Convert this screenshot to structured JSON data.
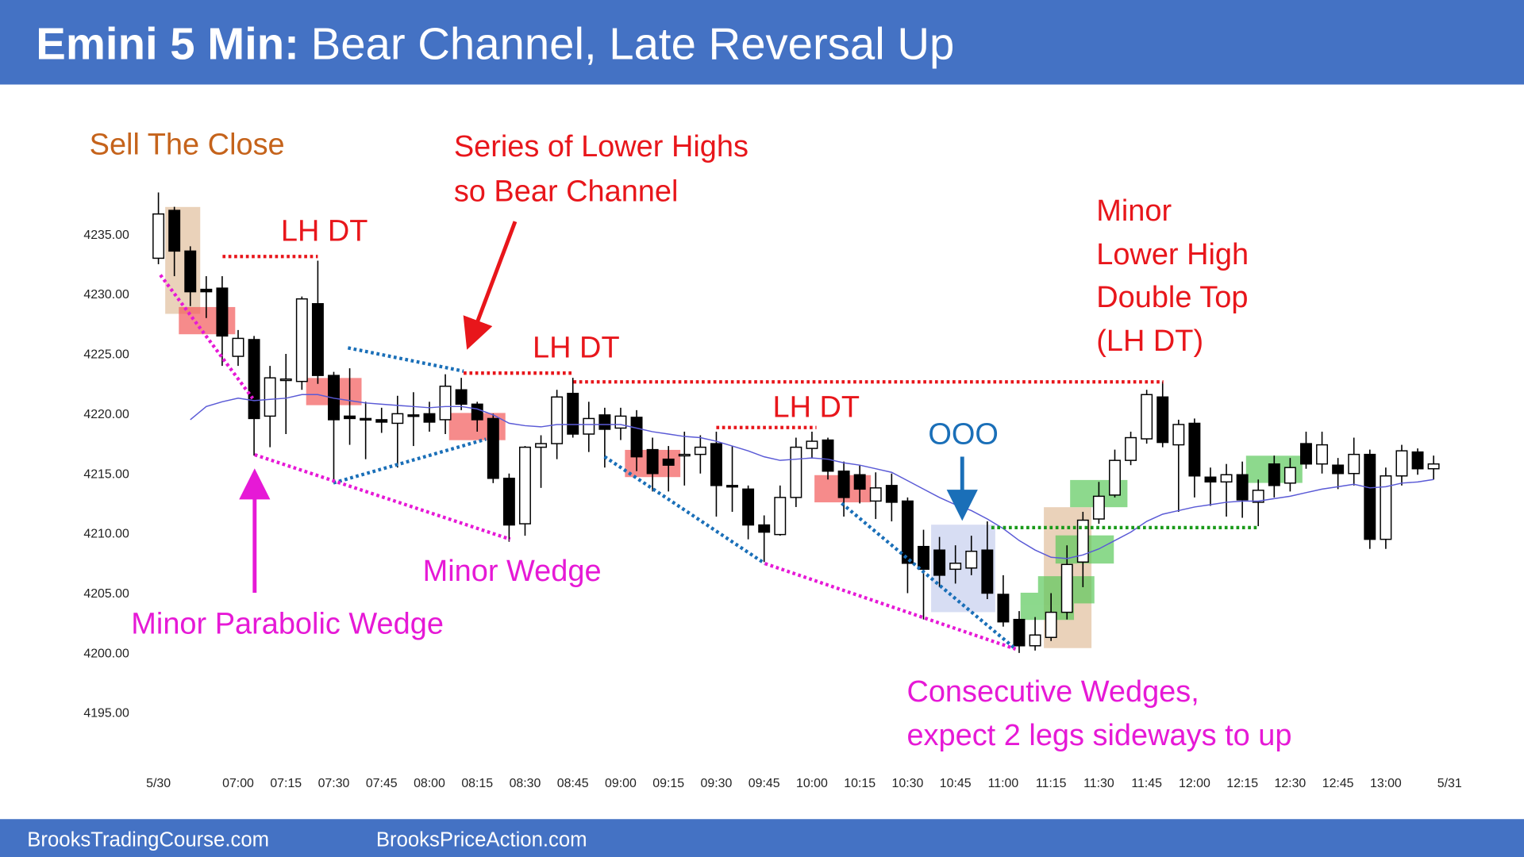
{
  "chart_data": {
    "type": "candlestick",
    "title_bold": "Emini 5 Min:",
    "title": "Bear Channel, Late Reversal Up",
    "footer": [
      "BrooksTradingCourse.com",
      "BrooksPriceAction.com"
    ],
    "up_color": "#ffffff",
    "down_color": "#000000",
    "open": [
      4233,
      4237,
      4233.6,
      4230.4,
      4230.5,
      4224.8,
      4226.2,
      4219.8,
      4222.8,
      4222.7,
      4229.2,
      4223.2,
      4219.8,
      4219.6,
      4219.5,
      4219.2,
      4219.9,
      4220,
      4219.5,
      4222,
      4220.8,
      4219.6,
      4214.6,
      4210.8,
      4217.2,
      4217.5,
      4221.7,
      4218.3,
      4219.9,
      4218.8,
      4219.7,
      4217,
      4216.2,
      4216.5,
      4216.6,
      4217.5,
      4214,
      4213.7,
      4210.7,
      4209.9,
      4213,
      4217.1,
      4217.8,
      4215.2,
      4214.9,
      4212.7,
      4214,
      4212.7,
      4208.9,
      4208.6,
      4207,
      4207.1,
      4208.6,
      4204.9,
      4202.8,
      4200.6,
      4201.3,
      4203.4,
      4207.6,
      4211.2,
      4213.2,
      4216.1,
      4217.9,
      4221.4,
      4217.4,
      4219.2,
      4214.7,
      4214.3,
      4214.9,
      4212.6,
      4215.8,
      4214.2,
      4217.5,
      4215.8,
      4215.7,
      4215,
      4216.6,
      4209.5,
      4214.8,
      4216.8,
      4215.4
    ],
    "high": [
      4238.5,
      4237.3,
      4234,
      4231.5,
      4231.5,
      4227,
      4226.5,
      4224,
      4225,
      4229.8,
      4232.8,
      4223.5,
      4223.8,
      4221,
      4220.5,
      4221.5,
      4221.8,
      4221,
      4223.3,
      4223,
      4221,
      4220,
      4215,
      4217.3,
      4218.2,
      4222,
      4223,
      4221,
      4220.5,
      4220.5,
      4220.3,
      4218,
      4217.3,
      4218.5,
      4218.2,
      4218.5,
      4217.3,
      4214,
      4211.5,
      4214,
      4218,
      4218.5,
      4218,
      4216,
      4215.7,
      4215.1,
      4215,
      4213,
      4210.3,
      4209.7,
      4209,
      4209.8,
      4211,
      4206.5,
      4203.5,
      4203,
      4205,
      4209,
      4211.8,
      4214.3,
      4217,
      4218.5,
      4222,
      4222.7,
      4219.5,
      4219.6,
      4215.5,
      4215.8,
      4216,
      4214.5,
      4216.5,
      4216.3,
      4218.5,
      4218.5,
      4216.3,
      4218,
      4217,
      4215.5,
      4217.4,
      4217.1,
      4216.5
    ],
    "low": [
      4232.5,
      4231.5,
      4229,
      4228,
      4224,
      4224,
      4216.5,
      4217.2,
      4218.3,
      4222,
      4222.5,
      4214.2,
      4217.4,
      4216.2,
      4218.4,
      4215.5,
      4217.3,
      4218.5,
      4218.3,
      4220.3,
      4218.5,
      4214.2,
      4209.3,
      4209.8,
      4213.8,
      4216.2,
      4218,
      4216.8,
      4215.5,
      4217.8,
      4215.2,
      4213.5,
      4213.5,
      4214,
      4215,
      4211.4,
      4211.8,
      4209.5,
      4207.6,
      4209.8,
      4212.2,
      4216.3,
      4214.5,
      4211.4,
      4212.5,
      4211.2,
      4211,
      4205,
      4202.8,
      4205.5,
      4205.8,
      4206.5,
      4204.5,
      4202.2,
      4200,
      4200.2,
      4201,
      4202.8,
      4205.5,
      4210.8,
      4213,
      4215.7,
      4217.5,
      4217.2,
      4211.8,
      4213,
      4212.3,
      4211.4,
      4211.3,
      4210.6,
      4213,
      4213.5,
      4215.4,
      4215,
      4213.7,
      4214,
      4208.7,
      4208.7,
      4214,
      4214.9,
      4214.5
    ],
    "close": [
      4236.7,
      4233.6,
      4230.2,
      4230.2,
      4226.5,
      4226.3,
      4219.6,
      4223,
      4222.9,
      4229.6,
      4223.2,
      4219.5,
      4219.6,
      4219.5,
      4219.3,
      4220,
      4219.8,
      4219.3,
      4222.3,
      4220.8,
      4219.5,
      4214.6,
      4210.7,
      4217.2,
      4217.5,
      4221.4,
      4218.3,
      4219.6,
      4218.7,
      4219.8,
      4216.4,
      4215,
      4215.7,
      4216.6,
      4217.2,
      4214,
      4213.9,
      4210.7,
      4210.1,
      4213,
      4217.2,
      4217.7,
      4215.2,
      4213,
      4213.7,
      4213.8,
      4212.6,
      4207.5,
      4207,
      4206.5,
      4207.5,
      4208.5,
      4205,
      4202.6,
      4200.6,
      4201.5,
      4203.4,
      4207.4,
      4211.1,
      4213.1,
      4216.1,
      4218,
      4221.6,
      4217.6,
      4219.1,
      4214.8,
      4214.3,
      4214.9,
      4212.8,
      4213.6,
      4214,
      4215.5,
      4215.8,
      4217.4,
      4215,
      4216.6,
      4209.5,
      4214.8,
      4216.9,
      4215.4,
      4215.8
    ],
    "moving_average": {
      "color": "#5a5ad6",
      "values": [
        null,
        null,
        4219.5,
        4220.6,
        4221,
        4221.3,
        4221.1,
        4221.2,
        4221.3,
        4221.6,
        4221.6,
        4221.3,
        4221.1,
        4220.9,
        4220.8,
        4220.7,
        4220.6,
        4220.5,
        4220.6,
        4220.6,
        4220.4,
        4219.9,
        4219.2,
        4219,
        4218.9,
        4219.1,
        4219.1,
        4219.1,
        4219.1,
        4219.1,
        4218.8,
        4218.5,
        4218.3,
        4218.1,
        4218,
        4217.7,
        4217.3,
        4216.9,
        4216.4,
        4216.1,
        4216.2,
        4216.3,
        4216.2,
        4215.9,
        4215.7,
        4215.4,
        4215.1,
        4214.4,
        4213.7,
        4213,
        4212.4,
        4211.9,
        4211.2,
        4210.4,
        4209.4,
        4208.6,
        4208,
        4207.9,
        4208.2,
        4208.7,
        4209.4,
        4210.1,
        4211,
        4211.6,
        4211.9,
        4212.2,
        4212.4,
        4212.6,
        4212.7,
        4212.7,
        4212.9,
        4213.1,
        4213.4,
        4213.7,
        4213.9,
        4214.1,
        4213.8,
        4213.9,
        4214.2,
        4214.3,
        4214.5
      ]
    },
    "xlim": [
      -1,
      82
    ],
    "ylim": [
      4190,
      4240
    ],
    "yticks": [
      {
        "value": 4195,
        "label": "4195.00"
      },
      {
        "value": 4200,
        "label": "4200.00"
      },
      {
        "value": 4205,
        "label": "4205.00"
      },
      {
        "value": 4210,
        "label": "4210.00"
      },
      {
        "value": 4215,
        "label": "4215.00"
      },
      {
        "value": 4220,
        "label": "4220.00"
      },
      {
        "value": 4225,
        "label": "4225.00"
      },
      {
        "value": 4230,
        "label": "4230.00"
      },
      {
        "value": 4235,
        "label": "4235.00"
      }
    ],
    "xticks": [
      {
        "value": 0,
        "label": "5/30"
      },
      {
        "value": 5,
        "label": "07:00"
      },
      {
        "value": 8,
        "label": "07:15"
      },
      {
        "value": 11,
        "label": "07:30"
      },
      {
        "value": 14,
        "label": "07:45"
      },
      {
        "value": 17,
        "label": "08:00"
      },
      {
        "value": 20,
        "label": "08:15"
      },
      {
        "value": 23,
        "label": "08:30"
      },
      {
        "value": 26,
        "label": "08:45"
      },
      {
        "value": 29,
        "label": "09:00"
      },
      {
        "value": 32,
        "label": "09:15"
      },
      {
        "value": 35,
        "label": "09:30"
      },
      {
        "value": 38,
        "label": "09:45"
      },
      {
        "value": 41,
        "label": "10:00"
      },
      {
        "value": 44,
        "label": "10:15"
      },
      {
        "value": 47,
        "label": "10:30"
      },
      {
        "value": 50,
        "label": "10:45"
      },
      {
        "value": 53,
        "label": "11:00"
      },
      {
        "value": 56,
        "label": "11:15"
      },
      {
        "value": 59,
        "label": "11:30"
      },
      {
        "value": 62,
        "label": "11:45"
      },
      {
        "value": 65,
        "label": "12:00"
      },
      {
        "value": 68,
        "label": "12:15"
      },
      {
        "value": 71,
        "label": "12:30"
      },
      {
        "value": 74,
        "label": "12:45"
      },
      {
        "value": 77,
        "label": "13:00"
      },
      {
        "value": 81,
        "label": "5/31"
      }
    ],
    "annotations": [
      {
        "color": "#c5631b",
        "lines": [
          "Sell The Close"
        ]
      },
      {
        "color": "#e8161b",
        "lines": [
          "Series of Lower Highs",
          "so Bear Channel"
        ]
      },
      {
        "color": "#e8161b",
        "lines": [
          "LH DT"
        ]
      },
      {
        "color": "#e8161b",
        "lines": [
          "LH DT"
        ]
      },
      {
        "color": "#e8161b",
        "lines": [
          "LH DT"
        ]
      },
      {
        "color": "#e8161b",
        "lines": [
          "Minor",
          "Lower High",
          "Double Top",
          "(LH DT)"
        ]
      },
      {
        "color": "#1a6fb8",
        "lines": [
          "OOO"
        ]
      },
      {
        "color": "#e619d6",
        "lines": [
          "Minor Wedge"
        ]
      },
      {
        "color": "#e619d6",
        "lines": [
          "Minor Parabolic Wedge"
        ]
      },
      {
        "color": "#e619d6",
        "lines": [
          "Consecutive Wedges,",
          "expect 2 legs sideways to up"
        ]
      }
    ]
  }
}
